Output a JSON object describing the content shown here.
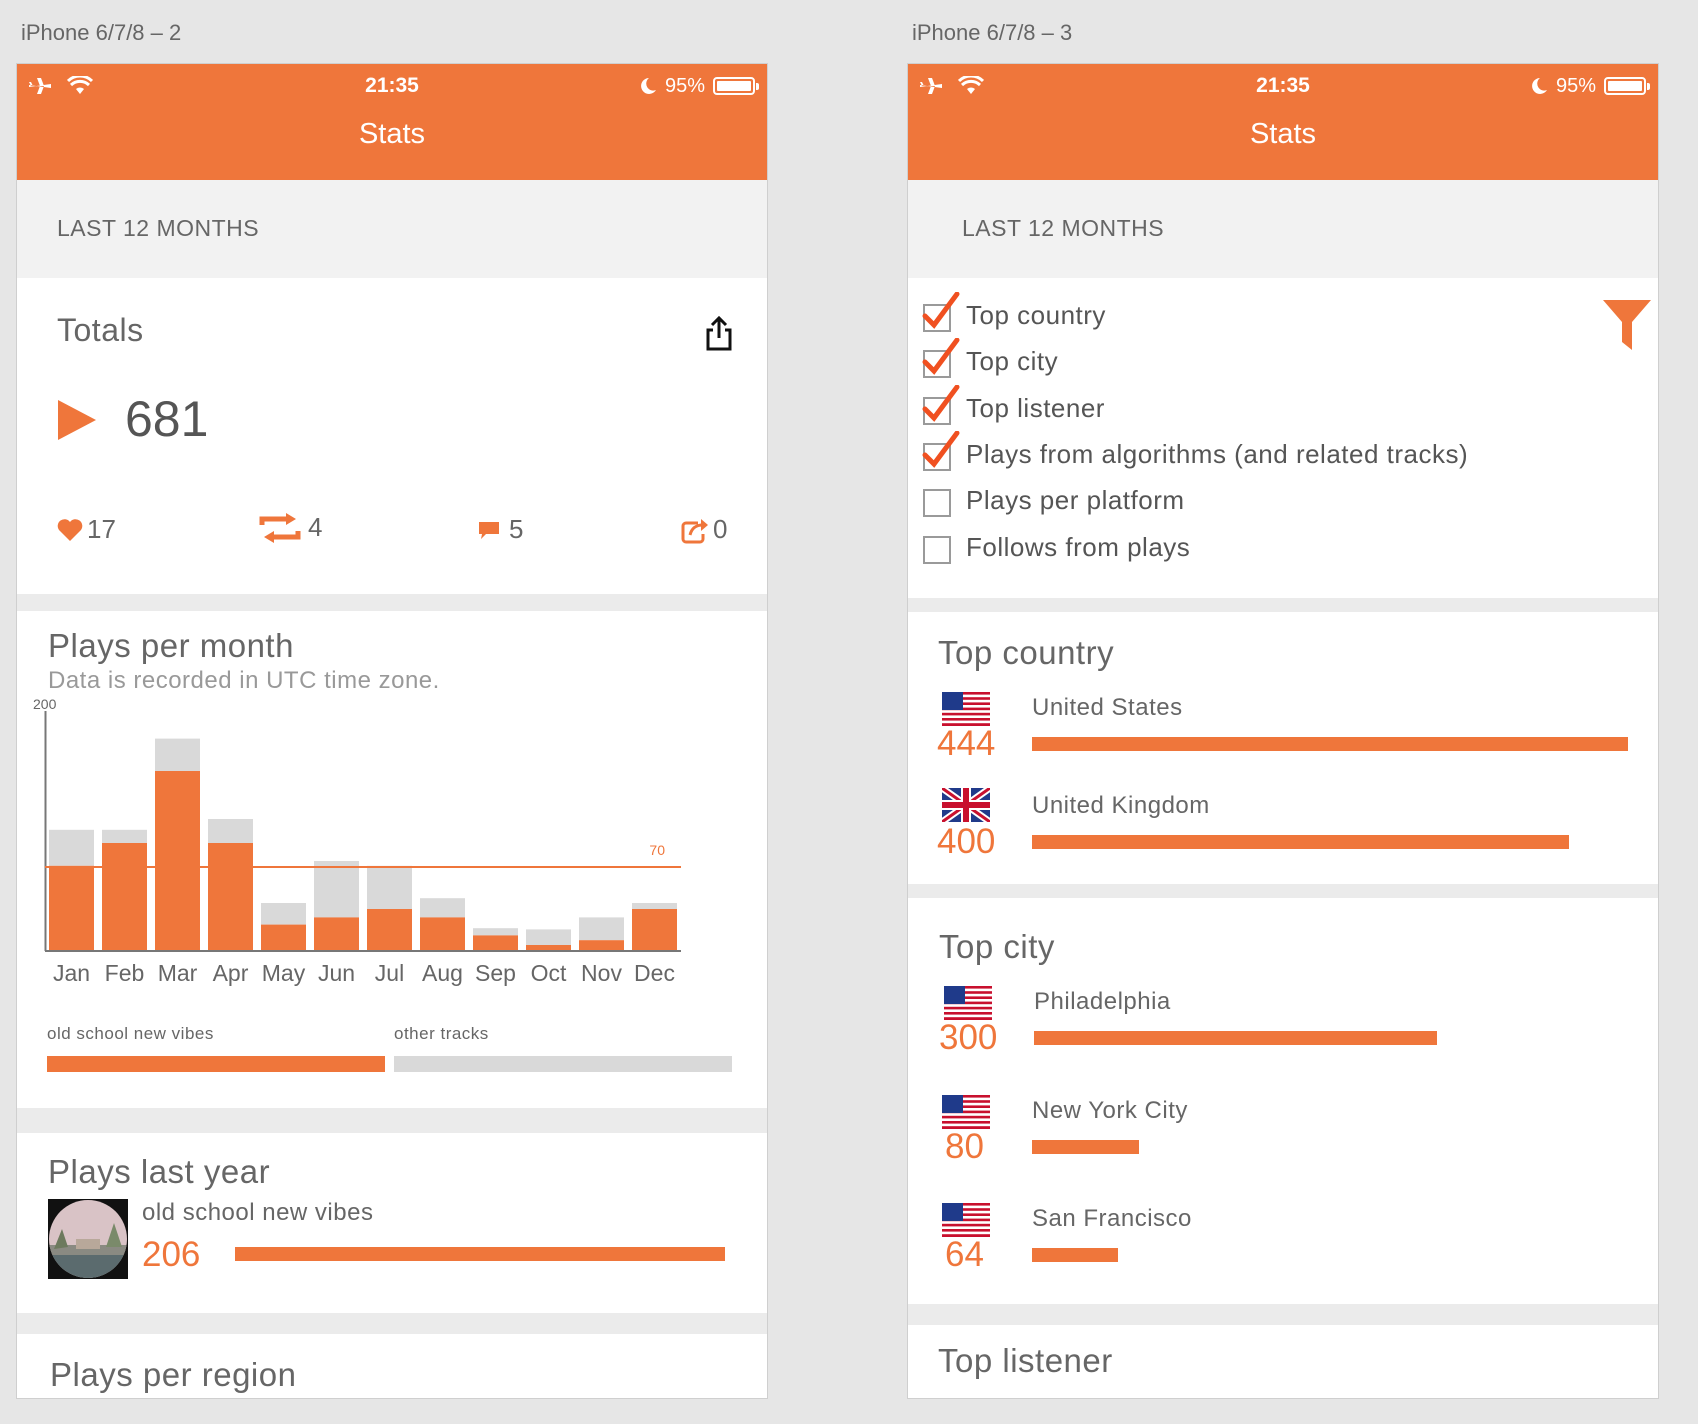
{
  "artboards": [
    {
      "label": "iPhone 6/7/8 – 2"
    },
    {
      "label": "iPhone 6/7/8 – 3"
    }
  ],
  "status_bar": {
    "time": "21:35",
    "battery": "95%"
  },
  "nav": {
    "title": "Stats"
  },
  "range_label": "LAST 12 MONTHS",
  "totals": {
    "title": "Totals",
    "plays": "681",
    "likes": "17",
    "reposts": "4",
    "comments": "5",
    "shares": "0"
  },
  "plays_per_month": {
    "title": "Plays per month",
    "subtitle": "Data is recorded in UTC time zone.",
    "legend_a": "old school new vibes",
    "legend_b": "other tracks",
    "y_max_label": "200",
    "ref_label": "70"
  },
  "chart_data": {
    "type": "bar",
    "stacked": true,
    "categories": [
      "Jan",
      "Feb",
      "Mar",
      "Apr",
      "May",
      "Jun",
      "Jul",
      "Aug",
      "Sep",
      "Oct",
      "Nov",
      "Dec"
    ],
    "series": [
      {
        "name": "old school new vibes",
        "color": "#ef763b",
        "values": [
          71,
          90,
          150,
          90,
          22,
          28,
          35,
          28,
          13,
          5,
          9,
          35
        ]
      },
      {
        "name": "other tracks",
        "color": "#d9d9d9",
        "values": [
          30,
          11,
          27,
          20,
          18,
          47,
          36,
          16,
          6,
          13,
          19,
          5
        ]
      }
    ],
    "ylim": [
      0,
      200
    ],
    "reference_line": {
      "value": 70,
      "label": "70",
      "color": "#ef763b"
    },
    "y_tick_labels": [
      "200"
    ]
  },
  "plays_last_year": {
    "title": "Plays last year",
    "track": "old school new vibes",
    "plays": "206",
    "fraction": 1.0
  },
  "plays_per_region": {
    "title": "Plays per region"
  },
  "filters": [
    {
      "label": "Top country",
      "checked": true
    },
    {
      "label": "Top city",
      "checked": true
    },
    {
      "label": "Top listener",
      "checked": true
    },
    {
      "label": "Plays from algorithms (and related tracks)",
      "checked": true
    },
    {
      "label": "Plays per platform",
      "checked": false
    },
    {
      "label": "Follows from plays",
      "checked": false
    }
  ],
  "top_country": {
    "title": "Top country",
    "max": 444,
    "items": [
      {
        "name": "United States",
        "value": "444",
        "flag": "us-flag-icon"
      },
      {
        "name": "United Kingdom",
        "value": "400",
        "flag": "uk-flag-icon"
      }
    ]
  },
  "top_city": {
    "title": "Top city",
    "max": 444,
    "items": [
      {
        "name": "Philadelphia",
        "value": "300",
        "flag": "us-flag-icon"
      },
      {
        "name": "New York City",
        "value": "80",
        "flag": "us-flag-icon"
      },
      {
        "name": "San Francisco",
        "value": "64",
        "flag": "us-flag-icon"
      }
    ]
  },
  "top_listener": {
    "title": "Top listener"
  },
  "colors": {
    "accent": "#ef763b",
    "other": "#d9d9d9",
    "section_bg": "#f2f2f2"
  }
}
